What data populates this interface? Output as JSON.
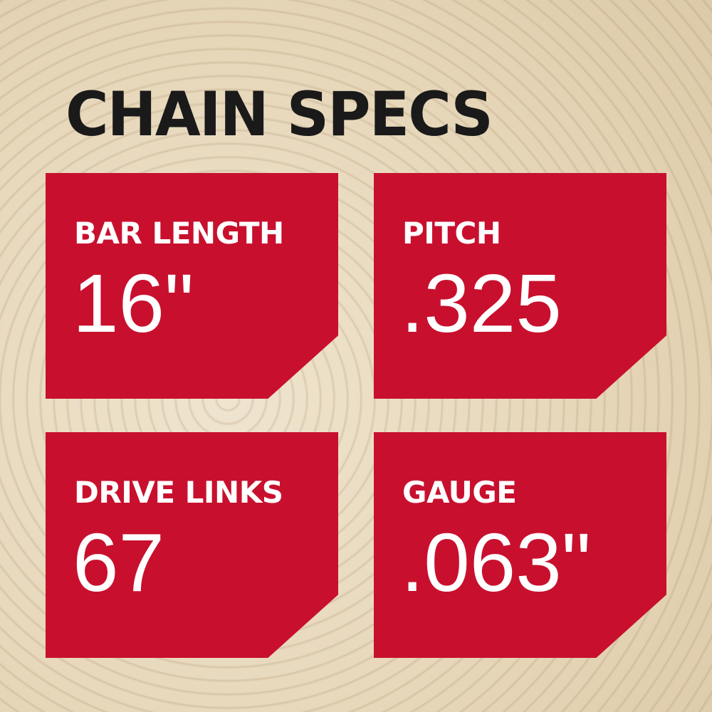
{
  "title": "CHAIN SPECS",
  "colors": {
    "card": "#c8102e",
    "title": "#1a1a1a",
    "text": "#ffffff",
    "background": "#e6d6b8"
  },
  "specs": [
    {
      "label": "BAR LENGTH",
      "value": "16\""
    },
    {
      "label": "PITCH",
      "value": ".325"
    },
    {
      "label": "DRIVE LINKS",
      "value": "67"
    },
    {
      "label": "GAUGE",
      "value": ".063\""
    }
  ]
}
